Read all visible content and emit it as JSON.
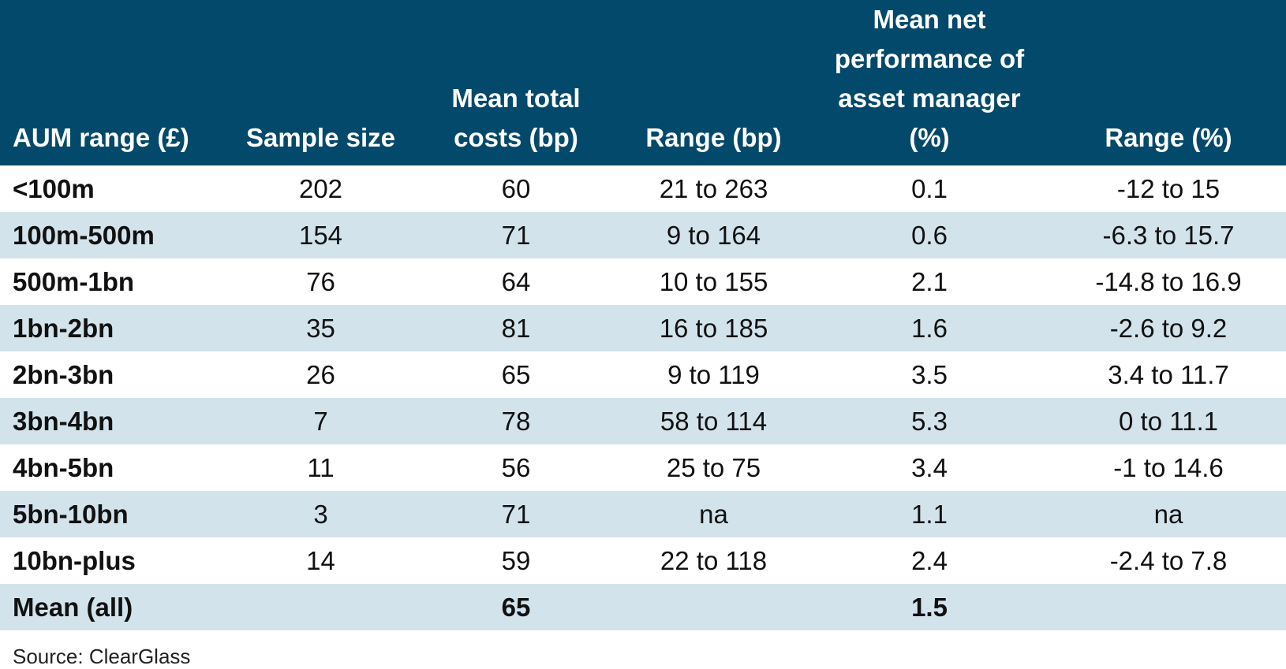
{
  "chart_data": {
    "type": "table",
    "columns": [
      "AUM range (£)",
      "Sample size",
      "Mean total costs (bp)",
      "Range (bp)",
      "Mean net performance of asset manager (%)",
      "Range (%)"
    ],
    "rows": [
      [
        "<100m",
        "202",
        "60",
        "21 to 263",
        "0.1",
        "-12 to 15"
      ],
      [
        "100m-500m",
        "154",
        "71",
        "9 to 164",
        "0.6",
        "-6.3 to 15.7"
      ],
      [
        "500m-1bn",
        "76",
        "64",
        "10 to 155",
        "2.1",
        "-14.8 to 16.9"
      ],
      [
        "1bn-2bn",
        "35",
        "81",
        "16 to 185",
        "1.6",
        "-2.6 to 9.2"
      ],
      [
        "2bn-3bn",
        "26",
        "65",
        "9 to 119",
        "3.5",
        "3.4 to 11.7"
      ],
      [
        "3bn-4bn",
        "7",
        "78",
        "58 to 114",
        "5.3",
        "0 to 11.1"
      ],
      [
        "4bn-5bn",
        "11",
        "56",
        "25 to 75",
        "3.4",
        "-1 to 14.6"
      ],
      [
        "5bn-10bn",
        "3",
        "71",
        "na",
        "1.1",
        "na"
      ],
      [
        "10bn-plus",
        "14",
        "59",
        "22 to 118",
        "2.4",
        "-2.4 to 7.8"
      ],
      [
        "Mean (all)",
        "",
        "65",
        "",
        "1.5",
        ""
      ]
    ],
    "source": "Source: ClearGlass"
  },
  "colors": {
    "header_bg": "#03496b",
    "header_text": "#ffffff",
    "band_row_bg": "#d3e3ec",
    "plain_row_bg": "#ffffff"
  }
}
